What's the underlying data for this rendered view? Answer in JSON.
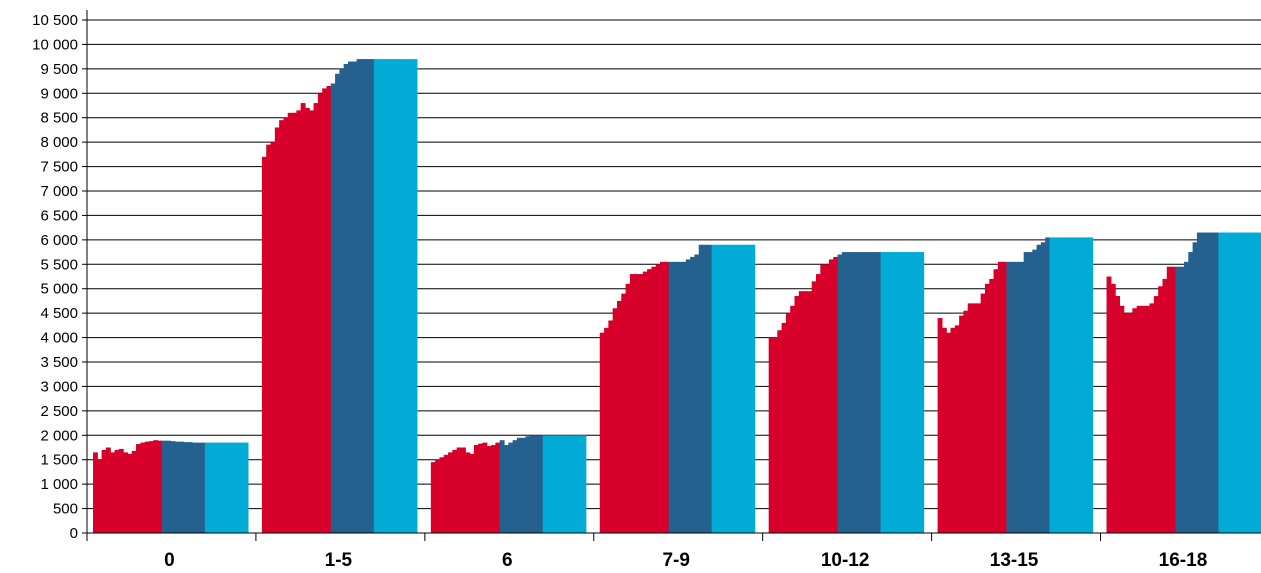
{
  "chart_data": {
    "type": "bar",
    "title": "",
    "xlabel": "",
    "ylabel": "",
    "ylim": [
      0,
      10500
    ],
    "ytick_step": 500,
    "ytick_labels": [
      "0",
      "500",
      "1 000",
      "1 500",
      "2 000",
      "2 500",
      "3 000",
      "3 500",
      "4 000",
      "4 500",
      "5 000",
      "5 500",
      "6 000",
      "6 500",
      "7 000",
      "7 500",
      "8 000",
      "8 500",
      "9 000",
      "9 500",
      "10 000",
      "10 500"
    ],
    "grid": true,
    "legend": "none",
    "colors": [
      "#d6002a",
      "#24618f",
      "#00acd6"
    ],
    "series_color_segments": [
      [
        0,
        16
      ],
      [
        16,
        26
      ],
      [
        26,
        36
      ]
    ],
    "categories": [
      "0",
      "1-5",
      "6",
      "7-9",
      "10-12",
      "13-15",
      "16-18"
    ],
    "groups": [
      {
        "category": "0",
        "values": [
          1650,
          1500,
          1700,
          1750,
          1650,
          1700,
          1720,
          1650,
          1620,
          1680,
          1820,
          1850,
          1870,
          1880,
          1900,
          1890,
          1890,
          1890,
          1880,
          1870,
          1870,
          1860,
          1860,
          1850,
          1850,
          1850,
          1850,
          1850,
          1850,
          1850,
          1850,
          1850,
          1850,
          1850,
          1850,
          1850
        ]
      },
      {
        "category": "1-5",
        "values": [
          7700,
          7950,
          8000,
          8300,
          8450,
          8500,
          8600,
          8600,
          8650,
          8800,
          8700,
          8650,
          8800,
          9000,
          9100,
          9150,
          9200,
          9400,
          9500,
          9600,
          9650,
          9650,
          9700,
          9700,
          9700,
          9700,
          9700,
          9700,
          9700,
          9700,
          9700,
          9700,
          9700,
          9700,
          9700,
          9700
        ]
      },
      {
        "category": "6",
        "values": [
          1450,
          1500,
          1550,
          1600,
          1650,
          1700,
          1750,
          1750,
          1650,
          1620,
          1800,
          1830,
          1850,
          1780,
          1800,
          1850,
          1900,
          1800,
          1850,
          1900,
          1950,
          1950,
          1980,
          2000,
          2000,
          2000,
          2000,
          2000,
          2000,
          2000,
          2000,
          2000,
          2000,
          2000,
          2000,
          2000
        ]
      },
      {
        "category": "7-9",
        "values": [
          4100,
          4200,
          4350,
          4600,
          4750,
          4900,
          5100,
          5300,
          5300,
          5300,
          5350,
          5400,
          5450,
          5500,
          5550,
          5550,
          5550,
          5550,
          5550,
          5550,
          5600,
          5650,
          5700,
          5900,
          5900,
          5900,
          5900,
          5900,
          5900,
          5900,
          5900,
          5900,
          5900,
          5900,
          5900,
          5900
        ]
      },
      {
        "category": "10-12",
        "values": [
          4000,
          4000,
          4150,
          4300,
          4500,
          4650,
          4850,
          4950,
          4950,
          4950,
          5150,
          5300,
          5500,
          5500,
          5600,
          5650,
          5700,
          5750,
          5750,
          5750,
          5750,
          5750,
          5750,
          5750,
          5750,
          5750,
          5750,
          5750,
          5750,
          5750,
          5750,
          5750,
          5750,
          5750,
          5750,
          5750
        ]
      },
      {
        "category": "13-15",
        "values": [
          4400,
          4200,
          4100,
          4200,
          4250,
          4450,
          4550,
          4700,
          4700,
          4700,
          4900,
          5100,
          5200,
          5400,
          5550,
          5550,
          5550,
          5550,
          5550,
          5550,
          5750,
          5750,
          5800,
          5900,
          5950,
          6050,
          6050,
          6050,
          6050,
          6050,
          6050,
          6050,
          6050,
          6050,
          6050,
          6050
        ]
      },
      {
        "category": "16-18",
        "values": [
          5250,
          5100,
          4850,
          4650,
          4500,
          4500,
          4600,
          4650,
          4650,
          4650,
          4700,
          4850,
          5050,
          5200,
          5450,
          5450,
          5450,
          5450,
          5550,
          5750,
          5950,
          6150,
          6150,
          6150,
          6150,
          6150,
          6150,
          6150,
          6150,
          6150,
          6150,
          6150,
          6150,
          6150,
          6150,
          6150
        ]
      }
    ]
  }
}
